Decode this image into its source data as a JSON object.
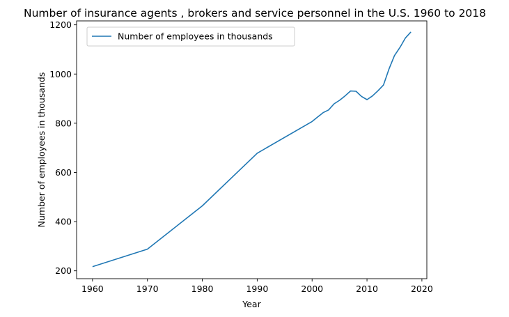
{
  "chart_data": {
    "type": "line",
    "title": "Number of insurance agents , brokers and service personnel in the U.S. 1960 to 2018",
    "xlabel": "Year",
    "ylabel": "Number of employees in thousands",
    "xlim": [
      1957.1,
      2020.9
    ],
    "ylim": [
      168,
      1216
    ],
    "xticks": [
      1960,
      1970,
      1980,
      1990,
      2000,
      2010,
      2020
    ],
    "yticks": [
      200,
      400,
      600,
      800,
      1000,
      1200
    ],
    "grid": false,
    "legend": "top-left",
    "series": [
      {
        "name": "Number of employees in thousands",
        "color": "#1f77b4",
        "x": [
          1960,
          1970,
          1980,
          1990,
          2000,
          2001,
          2002,
          2003,
          2004,
          2005,
          2006,
          2007,
          2008,
          2009,
          2010,
          2011,
          2012,
          2013,
          2014,
          2015,
          2016,
          2017,
          2018
        ],
        "y": [
          217,
          288,
          464,
          678,
          807,
          825,
          843,
          854,
          879,
          893,
          911,
          931,
          930,
          909,
          896,
          911,
          932,
          955,
          1020,
          1075,
          1108,
          1147,
          1171
        ]
      }
    ]
  }
}
